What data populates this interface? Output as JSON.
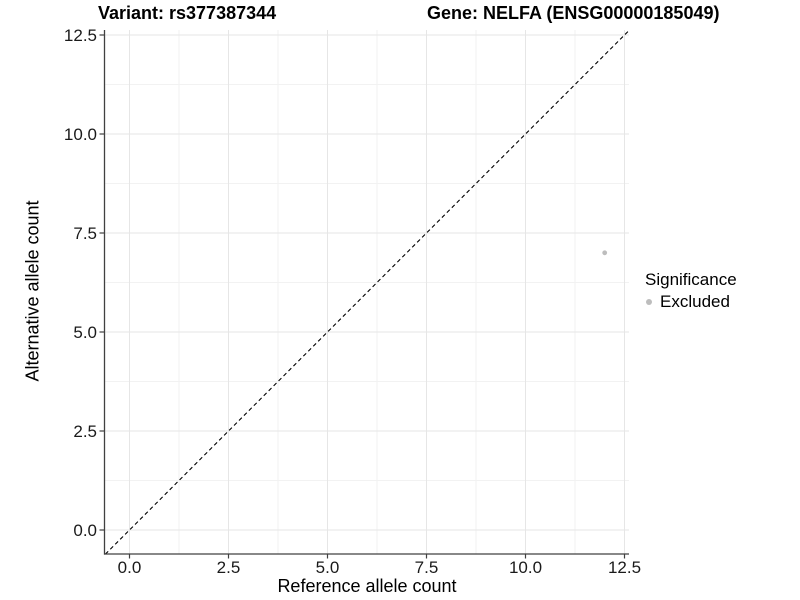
{
  "titles": {
    "variant": "Variant: rs377387344",
    "gene": "Gene: NELFA (ENSG00000185049)"
  },
  "axes": {
    "x_label": "Reference allele count",
    "y_label": "Alternative allele count"
  },
  "legend": {
    "title": "Significance",
    "items": [
      {
        "label": "Excluded",
        "color": "#bdbdbd"
      }
    ]
  },
  "colors": {
    "point": "#bdbdbd",
    "major_grid": "#e6e6e6",
    "minor_grid": "#f2f2f2",
    "axis_line": "#404040",
    "reference_line": "#000000"
  },
  "chart_data": {
    "type": "scatter",
    "title": "Variant: rs377387344   Gene: NELFA (ENSG00000185049)",
    "xlabel": "Reference allele count",
    "ylabel": "Alternative allele count",
    "xlim": [
      -0.62,
      12.62
    ],
    "ylim": [
      -0.62,
      12.62
    ],
    "x_ticks": [
      0.0,
      2.5,
      5.0,
      7.5,
      10.0,
      12.5
    ],
    "y_ticks": [
      0.0,
      2.5,
      5.0,
      7.5,
      10.0,
      12.5
    ],
    "x_tick_labels": [
      "0.0",
      "2.5",
      "5.0",
      "7.5",
      "10.0",
      "12.5"
    ],
    "y_tick_labels": [
      "0.0",
      "2.5",
      "5.0",
      "7.5",
      "10.0",
      "12.5"
    ],
    "grid": true,
    "legend_position": "right",
    "legend_title": "Significance",
    "series": [
      {
        "name": "Excluded",
        "color": "#bdbdbd",
        "points": [
          {
            "x": 12,
            "y": 7
          }
        ]
      }
    ],
    "reference_line": {
      "type": "identity",
      "style": "dashed",
      "from": [
        -0.61,
        -0.61
      ],
      "to": [
        12.62,
        12.62
      ]
    }
  }
}
